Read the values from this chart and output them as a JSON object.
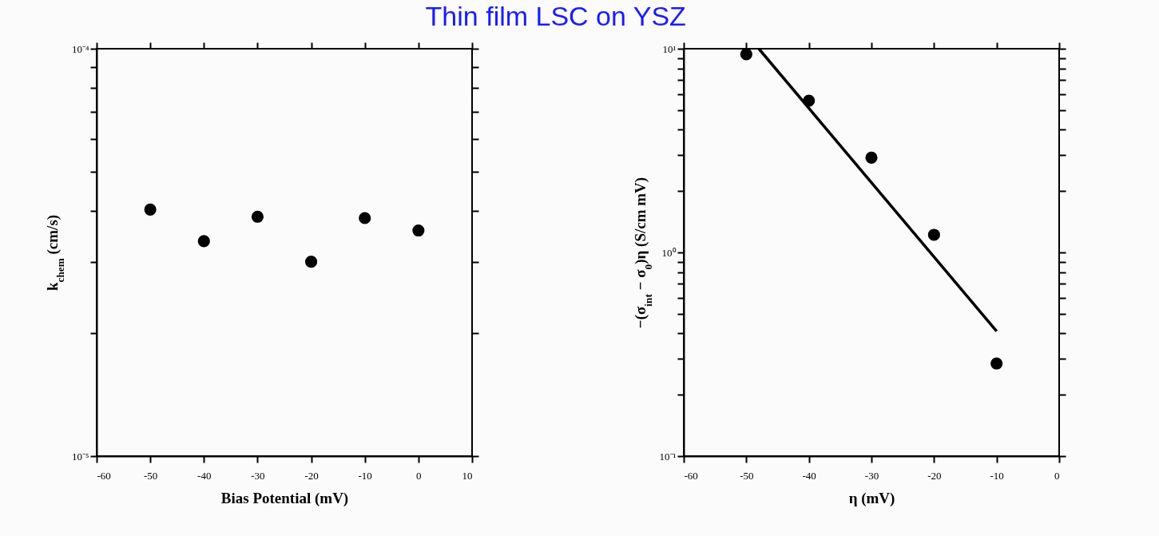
{
  "chart_data": [
    {
      "type": "scatter",
      "title": "Thin film LSC on YSZ",
      "xlabel": "Bias Potential (mV)",
      "ylabel": "k$_{chem}$  (cm/s)",
      "log": "y",
      "grid": false,
      "marker": "circle",
      "x": [
        -50,
        -40,
        -30,
        -20,
        -10,
        0
      ],
      "series": [
        {
          "color": "#000000",
          "values": [
            4.03e-05,
            3.37e-05,
            3.87e-05,
            3e-05,
            3.84e-05,
            3.58e-05
          ]
        }
      ],
      "xlim": [
        -60,
        10
      ],
      "xticks": [
        -60,
        -50,
        -40,
        -30,
        -20,
        -10,
        0,
        10
      ],
      "ylim": [
        1e-05,
        0.0001
      ],
      "yticks": [
        {
          "value": 1e-05,
          "label": "10⁻⁵"
        },
        {
          "value": 2e-05,
          "label": null
        },
        {
          "value": 3e-05,
          "label": null
        },
        {
          "value": 4e-05,
          "label": null
        },
        {
          "value": 5e-05,
          "label": null
        },
        {
          "value": 6e-05,
          "label": null
        },
        {
          "value": 7e-05,
          "label": null
        },
        {
          "value": 8e-05,
          "label": null
        },
        {
          "value": 9e-05,
          "label": null
        },
        {
          "value": 0.0001,
          "label": "10⁻⁴"
        }
      ]
    },
    {
      "type": "scatter",
      "xlabel": "η (mV)",
      "ylabel": "−(σ$_{int}$ − σ$_{0}$)η   (S/cm mV)",
      "log": "y",
      "grid": false,
      "marker": "circle",
      "x": [
        -50,
        -40,
        -30,
        -20,
        -10
      ],
      "series": [
        {
          "color": "#000000",
          "values": [
            9.4,
            5.56,
            2.92,
            1.22,
            0.285
          ]
        },
        {
          "type": "line",
          "color": "#000000",
          "x": [
            -48,
            -10
          ],
          "values": [
            10,
            0.41
          ],
          "marker": "none",
          "line_style": "solid"
        }
      ],
      "xlim": [
        -60,
        0
      ],
      "xticks": [
        -60,
        -50,
        -40,
        -30,
        -20,
        -10,
        0
      ],
      "ylim": [
        0.1,
        10
      ],
      "yticks": [
        {
          "value": 0.1,
          "label": "10⁻¹"
        },
        {
          "value": 0.2,
          "label": null
        },
        {
          "value": 0.3,
          "label": null
        },
        {
          "value": 0.4,
          "label": null
        },
        {
          "value": 0.5,
          "label": null
        },
        {
          "value": 0.6,
          "label": null
        },
        {
          "value": 0.7,
          "label": null
        },
        {
          "value": 0.8,
          "label": null
        },
        {
          "value": 0.9,
          "label": null
        },
        {
          "value": 1,
          "label": "10⁰"
        },
        {
          "value": 2,
          "label": null
        },
        {
          "value": 3,
          "label": null
        },
        {
          "value": 4,
          "label": null
        },
        {
          "value": 5,
          "label": null
        },
        {
          "value": 6,
          "label": null
        },
        {
          "value": 7,
          "label": null
        },
        {
          "value": 8,
          "label": null
        },
        {
          "value": 9,
          "label": null
        },
        {
          "value": 10,
          "label": "10¹"
        }
      ]
    }
  ]
}
